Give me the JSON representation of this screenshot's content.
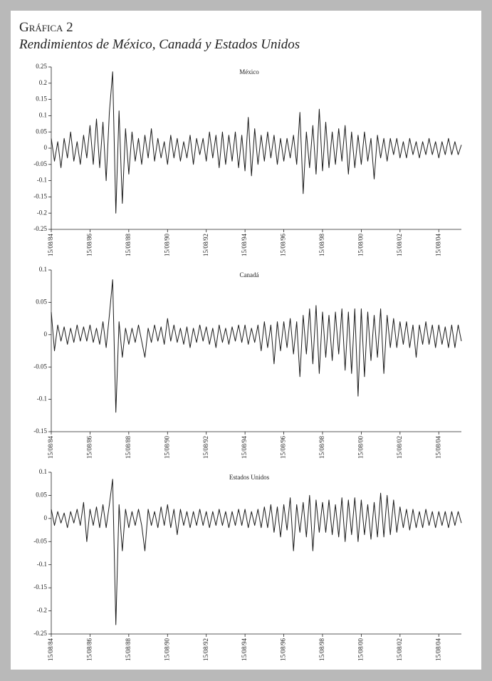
{
  "header": {
    "label": "Gráfica 2",
    "title": "Rendimientos de México, Canadá y Estados Unidos"
  },
  "chart_data": [
    {
      "type": "line",
      "title": "México",
      "color": "#1a1a1a",
      "categories": [
        "15/08/84",
        null,
        null,
        null,
        null,
        null,
        null,
        null,
        null,
        null,
        null,
        null,
        "15/08/86",
        null,
        null,
        null,
        null,
        null,
        null,
        null,
        null,
        null,
        null,
        null,
        "15/08/88",
        null,
        null,
        null,
        null,
        null,
        null,
        null,
        null,
        null,
        null,
        null,
        "15/08/90",
        null,
        null,
        null,
        null,
        null,
        null,
        null,
        null,
        null,
        null,
        null,
        "15/08/92",
        null,
        null,
        null,
        null,
        null,
        null,
        null,
        null,
        null,
        null,
        null,
        "15/08/94",
        null,
        null,
        null,
        null,
        null,
        null,
        null,
        null,
        null,
        null,
        null,
        "15/08/96",
        null,
        null,
        null,
        null,
        null,
        null,
        null,
        null,
        null,
        null,
        null,
        "15/08/98",
        null,
        null,
        null,
        null,
        null,
        null,
        null,
        null,
        null,
        null,
        null,
        "15/08/00",
        null,
        null,
        null,
        null,
        null,
        null,
        null,
        null,
        null,
        null,
        null,
        "15/08/02",
        null,
        null,
        null,
        null,
        null,
        null,
        null,
        null,
        null,
        null,
        null,
        "15/08/04",
        null,
        null,
        null,
        null,
        null,
        null,
        null
      ],
      "values": [
        0.03,
        -0.04,
        0.02,
        -0.06,
        0.03,
        -0.03,
        0.05,
        -0.04,
        0.02,
        -0.05,
        0.04,
        -0.03,
        0.07,
        -0.05,
        0.09,
        -0.06,
        0.08,
        -0.1,
        0.11,
        0.235,
        -0.2,
        0.115,
        -0.17,
        0.06,
        -0.08,
        0.05,
        -0.04,
        0.03,
        -0.05,
        0.04,
        -0.03,
        0.06,
        -0.04,
        0.03,
        -0.03,
        0.02,
        -0.05,
        0.04,
        -0.03,
        0.03,
        -0.04,
        0.02,
        -0.03,
        0.04,
        -0.05,
        0.03,
        -0.02,
        0.03,
        -0.04,
        0.05,
        -0.03,
        0.04,
        -0.06,
        0.05,
        -0.05,
        0.04,
        -0.04,
        0.05,
        -0.06,
        0.04,
        -0.07,
        0.095,
        -0.085,
        0.06,
        -0.05,
        0.04,
        -0.04,
        0.05,
        -0.03,
        0.04,
        -0.05,
        0.03,
        -0.04,
        0.03,
        -0.03,
        0.04,
        -0.05,
        0.11,
        -0.14,
        0.05,
        -0.06,
        0.07,
        -0.08,
        0.12,
        -0.07,
        0.08,
        -0.06,
        0.05,
        -0.05,
        0.06,
        -0.04,
        0.07,
        -0.08,
        0.05,
        -0.06,
        0.04,
        -0.05,
        0.05,
        -0.04,
        0.03,
        -0.095,
        0.04,
        -0.03,
        0.03,
        -0.04,
        0.03,
        -0.02,
        0.03,
        -0.03,
        0.02,
        -0.03,
        0.03,
        -0.02,
        0.02,
        -0.03,
        0.02,
        -0.02,
        0.03,
        -0.02,
        0.02,
        -0.03,
        0.02,
        -0.02,
        0.03,
        -0.02,
        0.02,
        -0.02,
        0.01
      ],
      "ylim": [
        -0.25,
        0.25
      ],
      "yticks": [
        0.25,
        0.2,
        0.15,
        0.1,
        0.05,
        0,
        -0.05,
        -0.1,
        -0.15,
        -0.2,
        -0.25
      ]
    },
    {
      "type": "line",
      "title": "Canadá",
      "color": "#1a1a1a",
      "categories": [
        "15/08/84",
        null,
        null,
        null,
        null,
        null,
        null,
        null,
        null,
        null,
        null,
        null,
        "15/08/86",
        null,
        null,
        null,
        null,
        null,
        null,
        null,
        null,
        null,
        null,
        null,
        "15/08/88",
        null,
        null,
        null,
        null,
        null,
        null,
        null,
        null,
        null,
        null,
        null,
        "15/08/90",
        null,
        null,
        null,
        null,
        null,
        null,
        null,
        null,
        null,
        null,
        null,
        "15/08/92",
        null,
        null,
        null,
        null,
        null,
        null,
        null,
        null,
        null,
        null,
        null,
        "15/08/94",
        null,
        null,
        null,
        null,
        null,
        null,
        null,
        null,
        null,
        null,
        null,
        "15/08/96",
        null,
        null,
        null,
        null,
        null,
        null,
        null,
        null,
        null,
        null,
        null,
        "15/08/98",
        null,
        null,
        null,
        null,
        null,
        null,
        null,
        null,
        null,
        null,
        null,
        "15/08/00",
        null,
        null,
        null,
        null,
        null,
        null,
        null,
        null,
        null,
        null,
        null,
        "15/08/02",
        null,
        null,
        null,
        null,
        null,
        null,
        null,
        null,
        null,
        null,
        null,
        "15/08/04",
        null,
        null,
        null,
        null,
        null,
        null,
        null
      ],
      "values": [
        0.035,
        -0.025,
        0.015,
        -0.01,
        0.012,
        -0.015,
        0.01,
        -0.012,
        0.015,
        -0.01,
        0.012,
        -0.01,
        0.015,
        -0.012,
        0.01,
        -0.015,
        0.02,
        -0.02,
        0.03,
        0.085,
        -0.12,
        0.02,
        -0.035,
        0.01,
        -0.015,
        0.01,
        -0.012,
        0.015,
        -0.01,
        -0.035,
        0.01,
        -0.012,
        0.015,
        -0.01,
        0.012,
        -0.015,
        0.025,
        -0.01,
        0.015,
        -0.012,
        0.01,
        -0.015,
        0.012,
        -0.02,
        0.01,
        -0.012,
        0.015,
        -0.01,
        0.012,
        -0.015,
        0.01,
        -0.02,
        0.015,
        -0.012,
        0.01,
        -0.015,
        0.012,
        -0.01,
        0.015,
        -0.012,
        0.015,
        -0.015,
        0.01,
        -0.012,
        0.015,
        -0.025,
        0.02,
        -0.02,
        0.015,
        -0.045,
        0.02,
        -0.025,
        0.02,
        -0.02,
        0.025,
        -0.03,
        0.02,
        -0.065,
        0.03,
        -0.03,
        0.04,
        -0.045,
        0.045,
        -0.06,
        0.035,
        -0.035,
        0.03,
        -0.04,
        0.035,
        -0.03,
        0.04,
        -0.055,
        0.035,
        -0.06,
        0.04,
        -0.095,
        0.04,
        -0.065,
        0.035,
        -0.04,
        0.03,
        -0.035,
        0.04,
        -0.06,
        0.03,
        -0.02,
        0.025,
        -0.02,
        0.02,
        -0.015,
        0.02,
        -0.02,
        0.015,
        -0.035,
        0.015,
        -0.015,
        0.02,
        -0.015,
        0.015,
        -0.02,
        0.015,
        -0.015,
        0.012,
        -0.02,
        0.015,
        -0.02,
        0.015,
        -0.01
      ],
      "ylim": [
        -0.15,
        0.1
      ],
      "yticks": [
        0.1,
        0.05,
        0,
        -0.05,
        -0.1,
        -0.15
      ]
    },
    {
      "type": "line",
      "title": "Estados Unidos",
      "color": "#1a1a1a",
      "categories": [
        "15/08/84",
        null,
        null,
        null,
        null,
        null,
        null,
        null,
        null,
        null,
        null,
        null,
        "15/08/86",
        null,
        null,
        null,
        null,
        null,
        null,
        null,
        null,
        null,
        null,
        null,
        "15/08/88",
        null,
        null,
        null,
        null,
        null,
        null,
        null,
        null,
        null,
        null,
        null,
        "15/08/90",
        null,
        null,
        null,
        null,
        null,
        null,
        null,
        null,
        null,
        null,
        null,
        "15/08/92",
        null,
        null,
        null,
        null,
        null,
        null,
        null,
        null,
        null,
        null,
        null,
        "15/08/94",
        null,
        null,
        null,
        null,
        null,
        null,
        null,
        null,
        null,
        null,
        null,
        "15/08/96",
        null,
        null,
        null,
        null,
        null,
        null,
        null,
        null,
        null,
        null,
        null,
        "15/08/98",
        null,
        null,
        null,
        null,
        null,
        null,
        null,
        null,
        null,
        null,
        null,
        "15/08/00",
        null,
        null,
        null,
        null,
        null,
        null,
        null,
        null,
        null,
        null,
        null,
        "15/08/02",
        null,
        null,
        null,
        null,
        null,
        null,
        null,
        null,
        null,
        null,
        null,
        "15/08/04",
        null,
        null,
        null,
        null,
        null,
        null,
        null
      ],
      "values": [
        0.02,
        -0.015,
        0.015,
        -0.01,
        0.012,
        -0.02,
        0.015,
        -0.01,
        0.02,
        -0.015,
        0.035,
        -0.05,
        0.02,
        -0.015,
        0.025,
        -0.02,
        0.03,
        -0.02,
        0.03,
        0.085,
        -0.23,
        0.03,
        -0.07,
        0.02,
        -0.02,
        0.015,
        -0.015,
        0.02,
        -0.015,
        -0.07,
        0.02,
        -0.015,
        0.015,
        -0.02,
        0.025,
        -0.015,
        0.03,
        -0.02,
        0.02,
        -0.035,
        0.02,
        -0.015,
        0.015,
        -0.02,
        0.015,
        -0.015,
        0.02,
        -0.015,
        0.015,
        -0.02,
        0.015,
        -0.015,
        0.02,
        -0.015,
        0.015,
        -0.02,
        0.015,
        -0.015,
        0.02,
        -0.015,
        0.02,
        -0.02,
        0.015,
        -0.015,
        0.02,
        -0.02,
        0.025,
        -0.02,
        0.03,
        -0.03,
        0.025,
        -0.04,
        0.03,
        -0.025,
        0.045,
        -0.07,
        0.03,
        -0.03,
        0.035,
        -0.04,
        0.05,
        -0.07,
        0.04,
        -0.03,
        0.035,
        -0.03,
        0.04,
        -0.035,
        0.03,
        -0.04,
        0.045,
        -0.05,
        0.04,
        -0.035,
        0.045,
        -0.05,
        0.04,
        -0.035,
        0.03,
        -0.045,
        0.035,
        -0.04,
        0.055,
        -0.04,
        0.05,
        -0.035,
        0.04,
        -0.03,
        0.025,
        -0.02,
        0.02,
        -0.025,
        0.02,
        -0.02,
        0.015,
        -0.02,
        0.02,
        -0.015,
        0.015,
        -0.02,
        0.015,
        -0.015,
        0.015,
        -0.02,
        0.015,
        -0.015,
        0.015,
        -0.01
      ],
      "ylim": [
        -0.25,
        0.1
      ],
      "yticks": [
        0.1,
        0.05,
        0,
        -0.05,
        -0.1,
        -0.15,
        -0.2,
        -0.25
      ]
    }
  ]
}
